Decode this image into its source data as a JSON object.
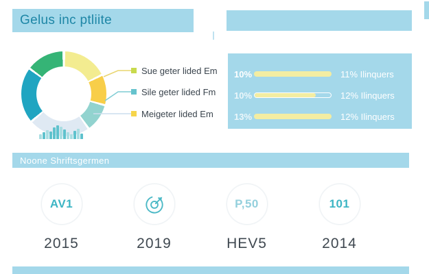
{
  "header": {
    "title": "Gelus inc ptliite"
  },
  "section": {
    "title": "Noone Shriftsgermen"
  },
  "colors": {
    "panel_blue": "#a4d8ea",
    "title_text": "#1d86a6",
    "bar_yellow": "#f3eda2",
    "inner_bar_dark": "#5fc2cd",
    "inner_bar_light": "#a9dde2",
    "stat_value_teal": "#3db5c4",
    "stat_value_light": "#94d0dd",
    "stat_label_gray": "#3f4850"
  },
  "donut": {
    "segments": [
      {
        "name": "pale-yellow",
        "color": "#f3ec90",
        "start": 2,
        "end": 62
      },
      {
        "name": "gold",
        "color": "#f8ce49",
        "start": 65,
        "end": 104
      },
      {
        "name": "light-teal",
        "color": "#92d3cf",
        "start": 107,
        "end": 143
      },
      {
        "name": "pale-blue",
        "color": "#dfe9f3",
        "start": 146,
        "end": 228
      },
      {
        "name": "teal",
        "color": "#20a5c1",
        "start": 231,
        "end": 305
      },
      {
        "name": "green",
        "color": "#35b476",
        "start": 308,
        "end": 358
      }
    ],
    "inner_bars": {
      "heights": [
        7,
        10,
        13,
        11,
        17,
        20,
        18,
        14,
        10,
        7,
        12,
        15,
        8
      ],
      "tones": [
        "light",
        "dark",
        "light",
        "dark",
        "dark",
        "dark",
        "light",
        "dark",
        "light",
        "light",
        "dark",
        "light",
        "dark"
      ]
    },
    "legend": [
      {
        "label": "Sue geter lided Em",
        "color": "#c8da4d",
        "line_color": "#e9d56f"
      },
      {
        "label": "Sile geter lided Fm",
        "color": "#66c3cd",
        "line_color": "#7fccd4"
      },
      {
        "label": "Meigeter lided Em",
        "color": "#f6d54b",
        "line_color": "#ccdeed"
      }
    ]
  },
  "progress_panel": {
    "rows": [
      {
        "left": "10%",
        "right": "11% Ilinquers",
        "fill": 100,
        "outlined": false
      },
      {
        "left": "10%",
        "right": "12% Ilinquers",
        "fill": 80,
        "outlined": true
      },
      {
        "left": "13%",
        "right": "12% Ilinquers",
        "fill": 100,
        "outlined": false
      }
    ]
  },
  "stats": [
    {
      "type": "text",
      "value": "AV1",
      "label": "2015",
      "value_color": "#3db5c4"
    },
    {
      "type": "icon",
      "icon": "target-arrow",
      "label": "2019"
    },
    {
      "type": "text",
      "value": "P,50",
      "label": "HEV5",
      "value_color": "#94d0dd"
    },
    {
      "type": "text",
      "value": "101",
      "label": "2014",
      "value_color": "#3db5c4"
    }
  ],
  "chart_data": [
    {
      "type": "pie",
      "title": "",
      "labels": [
        "pale-yellow",
        "gold",
        "light-teal",
        "pale-blue",
        "teal",
        "green"
      ],
      "values": [
        17,
        11,
        10,
        23,
        21,
        14
      ],
      "legend": [
        "Sue geter lided Em",
        "Sile geter lided Fm",
        "Meigeter lided Em"
      ],
      "legend_position": "right"
    },
    {
      "type": "bar",
      "title": "donut inner sparkline (unlabeled)",
      "values": [
        7,
        10,
        13,
        11,
        17,
        20,
        18,
        14,
        10,
        7,
        12,
        15,
        8
      ]
    },
    {
      "type": "bar",
      "title": "progress panel",
      "categories": [
        "10%",
        "10%",
        "13%"
      ],
      "values": [
        100,
        80,
        100
      ],
      "annotations": [
        "11% Ilinquers",
        "12% Ilinquers",
        "12% Ilinquers"
      ]
    }
  ]
}
